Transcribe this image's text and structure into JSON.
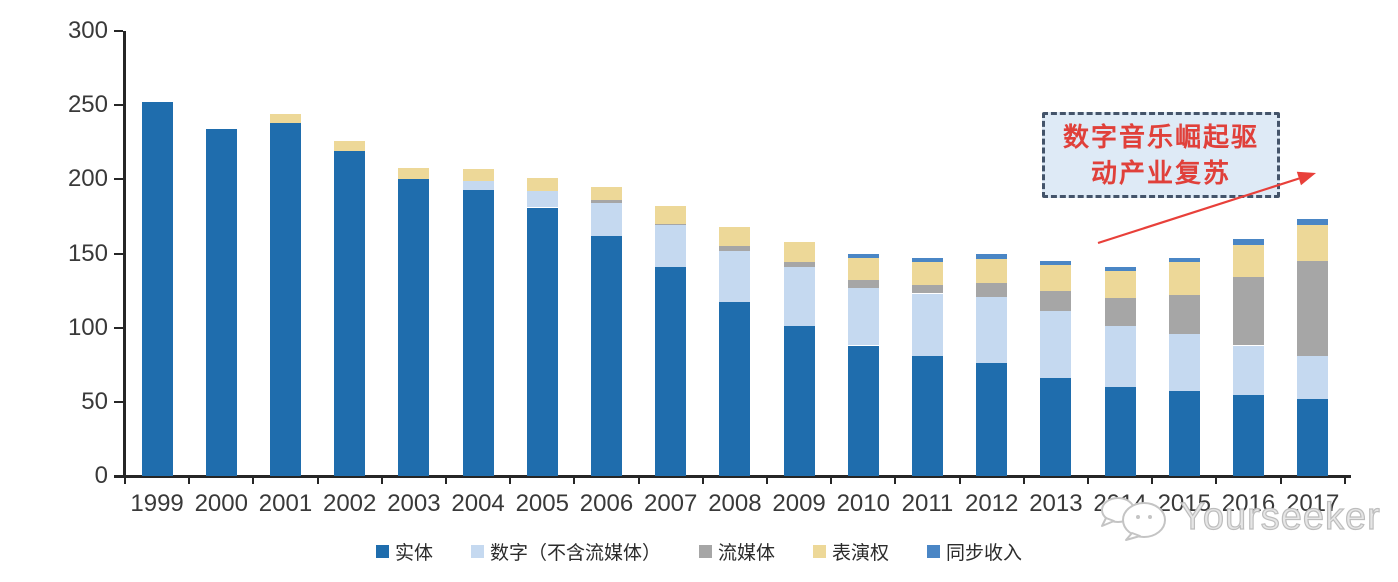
{
  "chart_data": {
    "type": "bar",
    "stacked": true,
    "title": "",
    "xlabel": "",
    "ylabel": "",
    "categories": [
      "1999",
      "2000",
      "2001",
      "2002",
      "2003",
      "2004",
      "2005",
      "2006",
      "2007",
      "2008",
      "2009",
      "2010",
      "2011",
      "2012",
      "2013",
      "2014",
      "2015",
      "2016",
      "2017"
    ],
    "series": [
      {
        "name": "实体",
        "color": "#1F6DAD",
        "values": [
          252,
          234,
          238,
          219,
          200,
          193,
          181,
          162,
          141,
          117,
          101,
          88,
          81,
          76,
          66,
          60,
          57,
          55,
          52
        ]
      },
      {
        "name": "数字（不含流媒体）",
        "color": "#C5D9F0",
        "values": [
          0,
          0,
          0,
          0,
          0,
          6,
          11,
          22,
          28,
          35,
          40,
          39,
          42,
          45,
          45,
          41,
          39,
          33,
          29
        ]
      },
      {
        "name": "流媒体",
        "color": "#A6A6A6",
        "values": [
          0,
          0,
          0,
          0,
          0,
          0,
          0,
          2,
          1,
          3,
          3,
          5,
          6,
          9,
          14,
          19,
          26,
          46,
          64
        ]
      },
      {
        "name": "表演权",
        "color": "#EDD898",
        "values": [
          0,
          0,
          6,
          7,
          8,
          8,
          9,
          9,
          12,
          13,
          14,
          15,
          15,
          16,
          17,
          18,
          22,
          22,
          24
        ]
      },
      {
        "name": "同步收入",
        "color": "#4A86C5",
        "values": [
          0,
          0,
          0,
          0,
          0,
          0,
          0,
          0,
          0,
          0,
          0,
          3,
          3,
          4,
          3,
          3,
          3,
          4,
          4
        ]
      }
    ],
    "ylim": [
      0,
      300
    ],
    "yticks": [
      0,
      50,
      100,
      150,
      200,
      250,
      300
    ],
    "grid": false,
    "legend_position": "bottom"
  },
  "annotation": {
    "text": "数字音乐崛起驱动产业复苏",
    "lines": [
      "数字音乐崛起驱",
      "动产业复苏"
    ],
    "text_color": "#E0403A",
    "box_fill": "#DEEAF6",
    "border_color": "#44546A",
    "arrow_color": "#E8403A"
  },
  "watermark": {
    "text": "Yourseeker",
    "color": "#BDBDBD"
  }
}
